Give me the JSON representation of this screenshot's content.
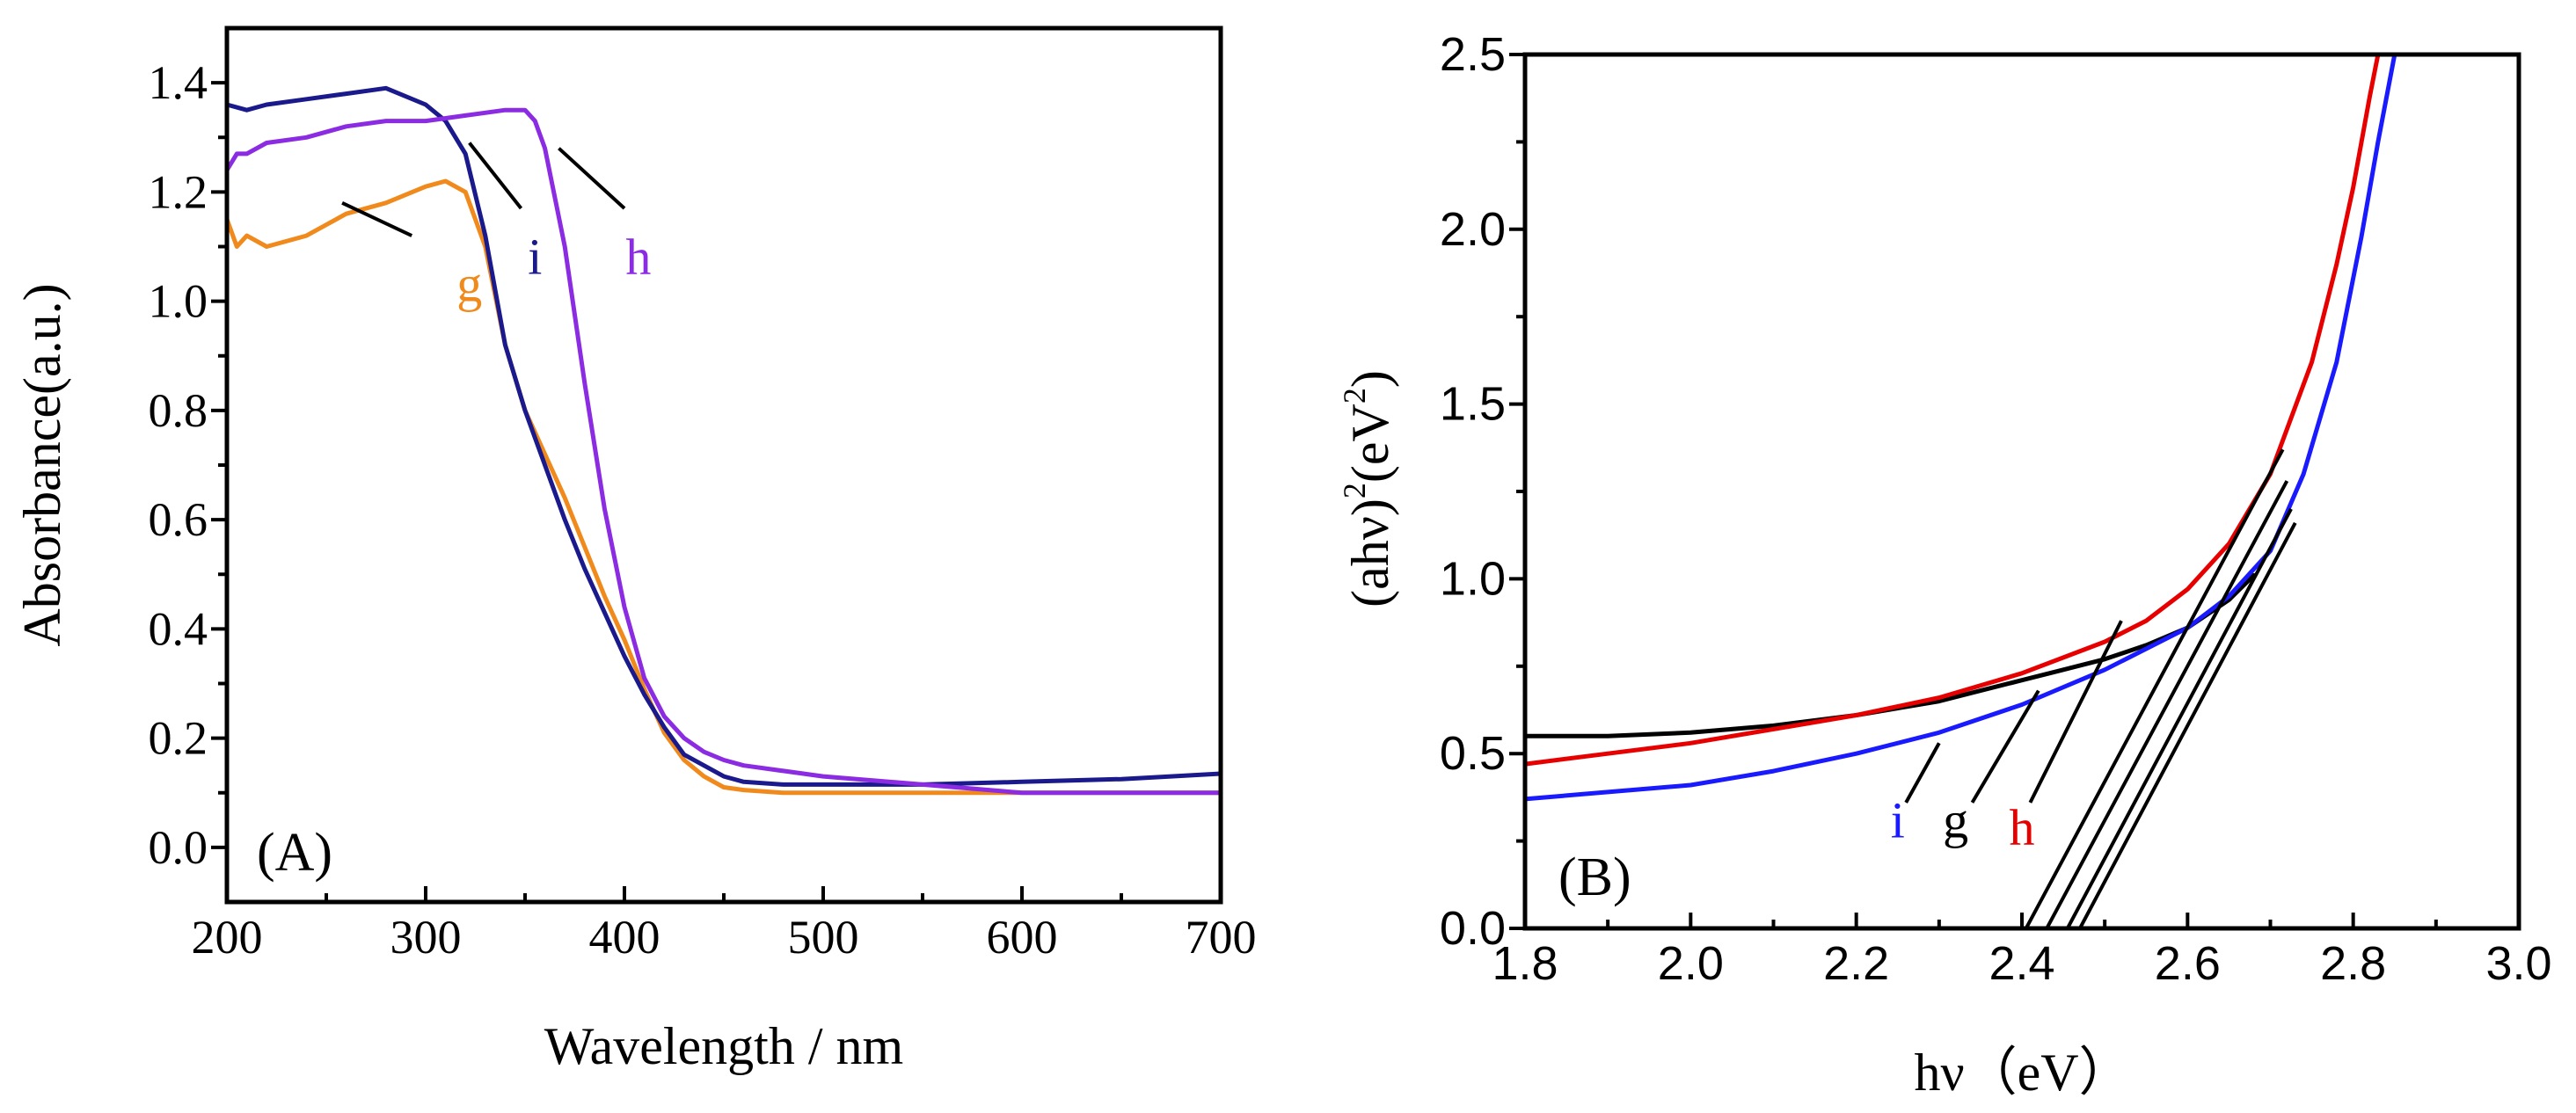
{
  "chart_data": [
    {
      "panel_label": "(A)",
      "type": "line",
      "xlabel": "Wavelength / nm",
      "ylabel": "Absorbance(a.u.)",
      "xlim": [
        200,
        700
      ],
      "ylim": [
        -0.1,
        1.5
      ],
      "x_ticks": [
        "200",
        "300",
        "400",
        "500",
        "600",
        "700"
      ],
      "y_ticks": [
        "0.0",
        "0.2",
        "0.4",
        "0.6",
        "0.8",
        "1.0",
        "1.2",
        "1.4"
      ],
      "series": [
        {
          "name": "g",
          "color": "#f08a1c",
          "x": [
            200,
            205,
            210,
            220,
            240,
            260,
            280,
            300,
            310,
            320,
            330,
            340,
            350,
            360,
            370,
            380,
            390,
            400,
            410,
            420,
            430,
            440,
            450,
            460,
            480,
            500,
            550,
            600,
            650,
            700
          ],
          "y": [
            1.15,
            1.1,
            1.12,
            1.1,
            1.12,
            1.16,
            1.18,
            1.21,
            1.22,
            1.2,
            1.1,
            0.92,
            0.8,
            0.72,
            0.64,
            0.55,
            0.46,
            0.38,
            0.29,
            0.21,
            0.16,
            0.13,
            0.11,
            0.105,
            0.1,
            0.1,
            0.1,
            0.1,
            0.1,
            0.1
          ]
        },
        {
          "name": "i",
          "color": "#1a1a8c",
          "x": [
            200,
            210,
            220,
            240,
            260,
            280,
            300,
            310,
            320,
            330,
            340,
            350,
            360,
            370,
            380,
            390,
            400,
            410,
            420,
            430,
            440,
            450,
            460,
            480,
            500,
            550,
            600,
            650,
            700
          ],
          "y": [
            1.36,
            1.35,
            1.36,
            1.37,
            1.38,
            1.39,
            1.36,
            1.33,
            1.27,
            1.12,
            0.92,
            0.8,
            0.7,
            0.6,
            0.51,
            0.43,
            0.35,
            0.28,
            0.22,
            0.17,
            0.15,
            0.13,
            0.12,
            0.115,
            0.115,
            0.115,
            0.12,
            0.125,
            0.135
          ]
        },
        {
          "name": "h",
          "color": "#8b2be2",
          "x": [
            200,
            205,
            210,
            220,
            240,
            260,
            280,
            300,
            320,
            340,
            350,
            355,
            360,
            370,
            380,
            390,
            400,
            410,
            420,
            430,
            440,
            450,
            460,
            480,
            500,
            550,
            600,
            650,
            700
          ],
          "y": [
            1.24,
            1.27,
            1.27,
            1.29,
            1.3,
            1.32,
            1.33,
            1.33,
            1.34,
            1.35,
            1.35,
            1.33,
            1.28,
            1.1,
            0.85,
            0.62,
            0.44,
            0.31,
            0.24,
            0.2,
            0.175,
            0.16,
            0.15,
            0.14,
            0.13,
            0.115,
            0.1,
            0.1,
            0.1
          ]
        }
      ],
      "annotations": [
        {
          "text": "g",
          "color": "#f08a1c",
          "label_x": 322,
          "label_y": 1.0,
          "line_from": [
            293,
            1.12
          ],
          "line_to": [
            258,
            1.18
          ]
        },
        {
          "text": "i",
          "color": "#1a1a8c",
          "label_x": 355,
          "label_y": 1.05,
          "line_from": [
            348,
            1.17
          ],
          "line_to": [
            322,
            1.29
          ]
        },
        {
          "text": "h",
          "color": "#8b2be2",
          "label_x": 407,
          "label_y": 1.05,
          "line_from": [
            400,
            1.17
          ],
          "line_to": [
            367,
            1.28
          ]
        }
      ]
    },
    {
      "panel_label": "(B)",
      "type": "line",
      "xlabel": "hν（eV）",
      "ylabel_main": "(ahν)",
      "ylabel_sup1": "2",
      "ylabel_mid": "(eV",
      "ylabel_sup2": "2",
      "ylabel_end": ")",
      "xlim": [
        1.8,
        3.0
      ],
      "ylim": [
        0.0,
        2.5
      ],
      "x_ticks": [
        "1.8",
        "2.0",
        "2.2",
        "2.4",
        "2.6",
        "2.8",
        "3.0"
      ],
      "y_ticks": [
        "0.0",
        "0.5",
        "1.0",
        "1.5",
        "2.0",
        "2.5"
      ],
      "series": [
        {
          "name": "g",
          "color": "#000000",
          "x": [
            1.8,
            1.9,
            2.0,
            2.1,
            2.2,
            2.3,
            2.35,
            2.4,
            2.45,
            2.5,
            2.55,
            2.6,
            2.65,
            2.68
          ],
          "y": [
            0.55,
            0.55,
            0.56,
            0.58,
            0.61,
            0.65,
            0.68,
            0.71,
            0.74,
            0.77,
            0.81,
            0.86,
            0.94,
            1.01
          ]
        },
        {
          "name": "h",
          "color": "#e60000",
          "x": [
            1.8,
            1.9,
            2.0,
            2.1,
            2.2,
            2.3,
            2.4,
            2.5,
            2.55,
            2.6,
            2.65,
            2.7,
            2.75,
            2.78,
            2.8,
            2.82,
            2.83
          ],
          "y": [
            0.47,
            0.5,
            0.53,
            0.57,
            0.61,
            0.66,
            0.73,
            0.82,
            0.88,
            0.97,
            1.1,
            1.3,
            1.62,
            1.9,
            2.12,
            2.38,
            2.5
          ]
        },
        {
          "name": "i",
          "color": "#1a1aff",
          "x": [
            1.8,
            1.9,
            2.0,
            2.1,
            2.2,
            2.3,
            2.4,
            2.5,
            2.6,
            2.65,
            2.7,
            2.74,
            2.78,
            2.81,
            2.83,
            2.85
          ],
          "y": [
            0.37,
            0.39,
            0.41,
            0.45,
            0.5,
            0.56,
            0.64,
            0.74,
            0.86,
            0.95,
            1.08,
            1.3,
            1.62,
            1.98,
            2.25,
            2.5
          ]
        }
      ],
      "tangent_lines": [
        {
          "from": [
            2.405,
            0.0
          ],
          "to": [
            2.715,
            1.37
          ]
        },
        {
          "from": [
            2.43,
            0.0
          ],
          "to": [
            2.72,
            1.28
          ]
        },
        {
          "from": [
            2.455,
            0.0
          ],
          "to": [
            2.725,
            1.2
          ]
        },
        {
          "from": [
            2.47,
            0.0
          ],
          "to": [
            2.73,
            1.16
          ]
        }
      ],
      "annotations": [
        {
          "text": "i",
          "color": "#1a1aff",
          "label_x": 2.25,
          "label_y": 0.26,
          "line_from": [
            2.26,
            0.36
          ],
          "line_to": [
            2.3,
            0.53
          ]
        },
        {
          "text": "g",
          "color": "#000000",
          "label_x": 2.32,
          "label_y": 0.26,
          "line_from": [
            2.34,
            0.36
          ],
          "line_to": [
            2.42,
            0.68
          ]
        },
        {
          "text": "h",
          "color": "#e60000",
          "label_x": 2.4,
          "label_y": 0.24,
          "line_from": [
            2.41,
            0.36
          ],
          "line_to": [
            2.52,
            0.88
          ]
        }
      ]
    }
  ]
}
